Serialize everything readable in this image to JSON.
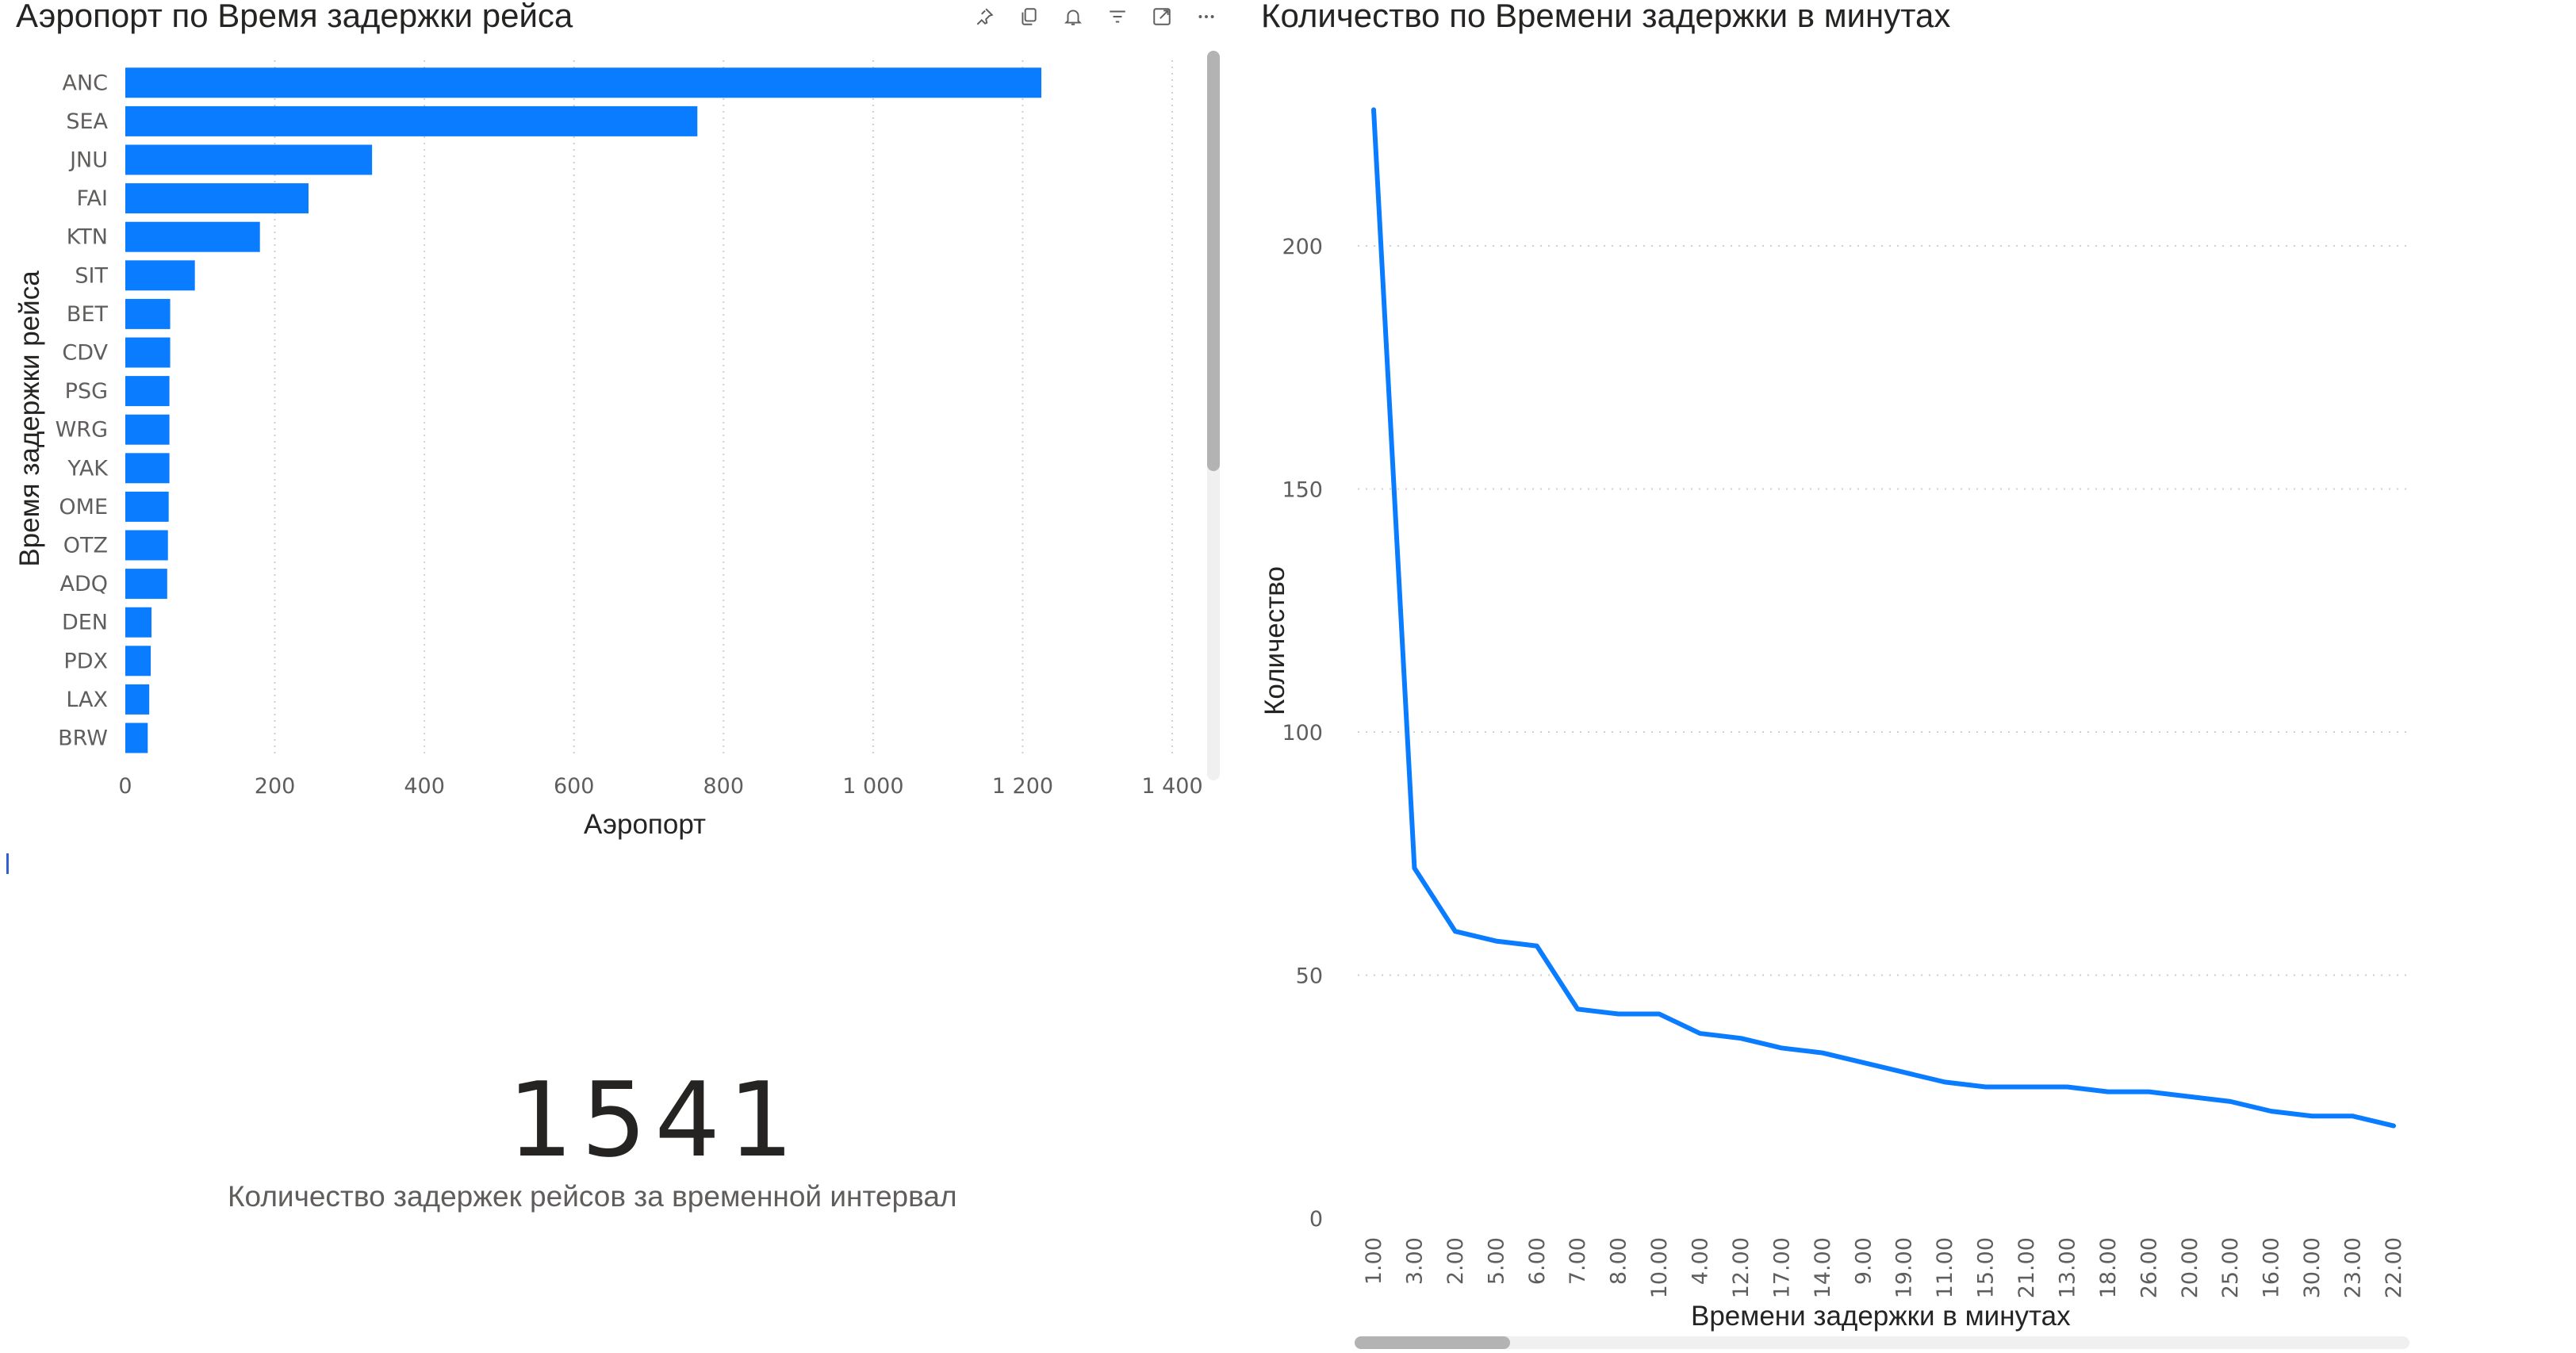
{
  "toolbar": {
    "icons": [
      "pin-icon",
      "copy-icon",
      "bell-icon",
      "filter-icon",
      "focus-mode-icon",
      "more-options-icon"
    ]
  },
  "card": {
    "value": "1541",
    "label": "Количество задержек рейсов за временной интервал"
  },
  "colors": {
    "bar": "#0a7cff",
    "line": "#0a7cff",
    "grid": "#cfcfcf"
  },
  "chart_data": [
    {
      "type": "bar",
      "orientation": "horizontal",
      "title": "Аэропорт по Время задержки рейса",
      "xlabel": "Аэропорт",
      "ylabel": "Время задержки рейса",
      "categories": [
        "ANC",
        "SEA",
        "JNU",
        "FAI",
        "KTN",
        "SIT",
        "BET",
        "CDV",
        "PSG",
        "WRG",
        "YAK",
        "OME",
        "OTZ",
        "ADQ",
        "DEN",
        "PDX",
        "LAX",
        "BRW"
      ],
      "values": [
        1225,
        765,
        330,
        245,
        180,
        93,
        60,
        60,
        59,
        59,
        59,
        58,
        57,
        56,
        35,
        34,
        32,
        30
      ],
      "xlim": [
        0,
        1400
      ],
      "xticks": [
        "0",
        "200",
        "400",
        "600",
        "800",
        "1 000",
        "1 200",
        "1 400"
      ],
      "xtick_values": [
        0,
        200,
        400,
        600,
        800,
        1000,
        1200,
        1400
      ],
      "grid": "vertical dotted"
    },
    {
      "type": "line",
      "title": "Количество по Времени задержки в минутах",
      "xlabel": "Времени задержки в минутах",
      "ylabel": "Количество",
      "categories": [
        "1.00",
        "3.00",
        "2.00",
        "5.00",
        "6.00",
        "7.00",
        "8.00",
        "10.00",
        "4.00",
        "12.00",
        "17.00",
        "14.00",
        "9.00",
        "19.00",
        "11.00",
        "15.00",
        "21.00",
        "13.00",
        "18.00",
        "26.00",
        "20.00",
        "25.00",
        "16.00",
        "30.00",
        "23.00",
        "22.00"
      ],
      "values": [
        228,
        72,
        59,
        57,
        56,
        43,
        42,
        42,
        38,
        37,
        35,
        34,
        32,
        30,
        28,
        27,
        27,
        27,
        26,
        26,
        25,
        24,
        22,
        21,
        21,
        19
      ],
      "ylim": [
        0,
        228
      ],
      "yticks": [
        0,
        50,
        100,
        150,
        200
      ],
      "grid": "horizontal dotted"
    }
  ]
}
